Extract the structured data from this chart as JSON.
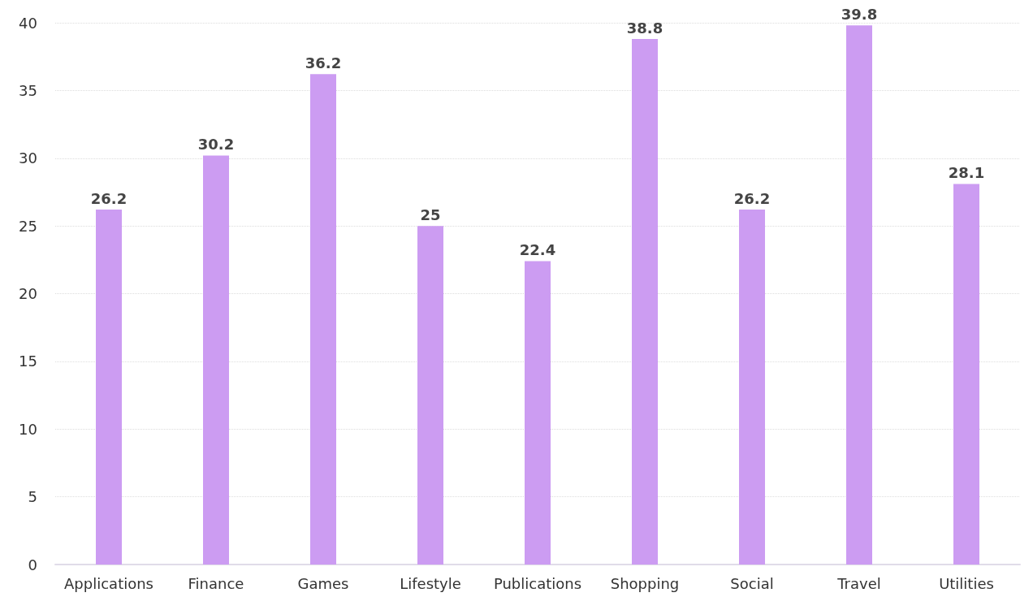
{
  "chart_data": {
    "type": "bar",
    "categories": [
      "Applications",
      "Finance",
      "Games",
      "Lifestyle",
      "Publications",
      "Shopping",
      "Social",
      "Travel",
      "Utilities"
    ],
    "values": [
      26.2,
      30.2,
      36.2,
      25,
      22.4,
      38.8,
      26.2,
      39.8,
      28.1
    ],
    "color": "#cc9cf2",
    "ylim": [
      0,
      40
    ],
    "yticks": [
      0,
      5,
      10,
      15,
      20,
      25,
      30,
      35,
      40
    ],
    "grid": "y",
    "data_labels": true
  }
}
